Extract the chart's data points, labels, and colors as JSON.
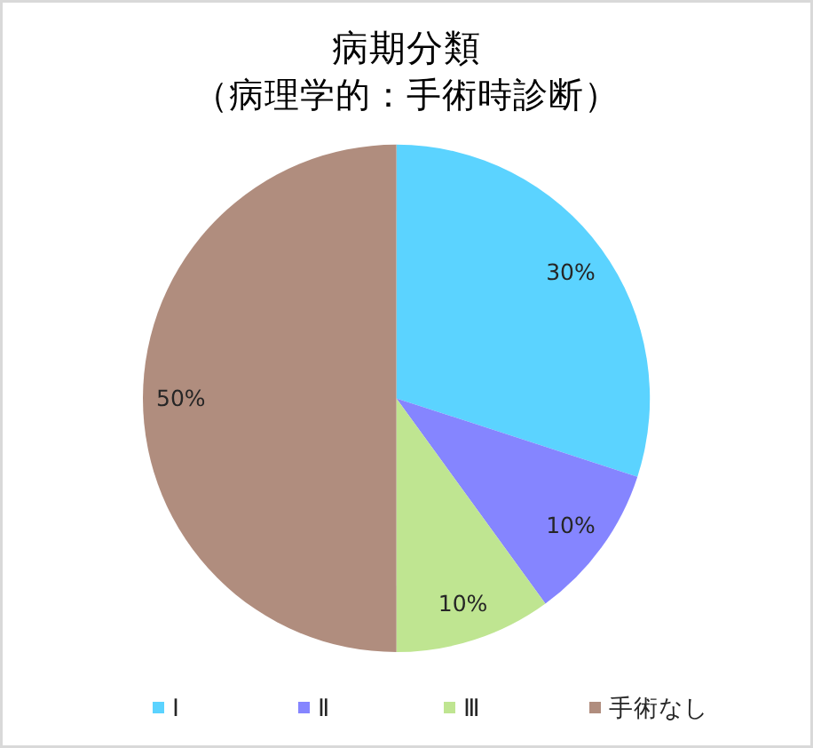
{
  "chart_data": {
    "type": "pie",
    "title": "病期分類",
    "subtitle": "（病理学的：手術時診断）",
    "categories": [
      "Ⅰ",
      "Ⅱ",
      "Ⅲ",
      "手術なし"
    ],
    "values": [
      30,
      10,
      10,
      50
    ],
    "colors": [
      "#5bd3ff",
      "#8585ff",
      "#bfe591",
      "#b08d7e"
    ],
    "value_labels": [
      "30%",
      "10%",
      "10%",
      "50%"
    ],
    "legend": "bottom"
  }
}
